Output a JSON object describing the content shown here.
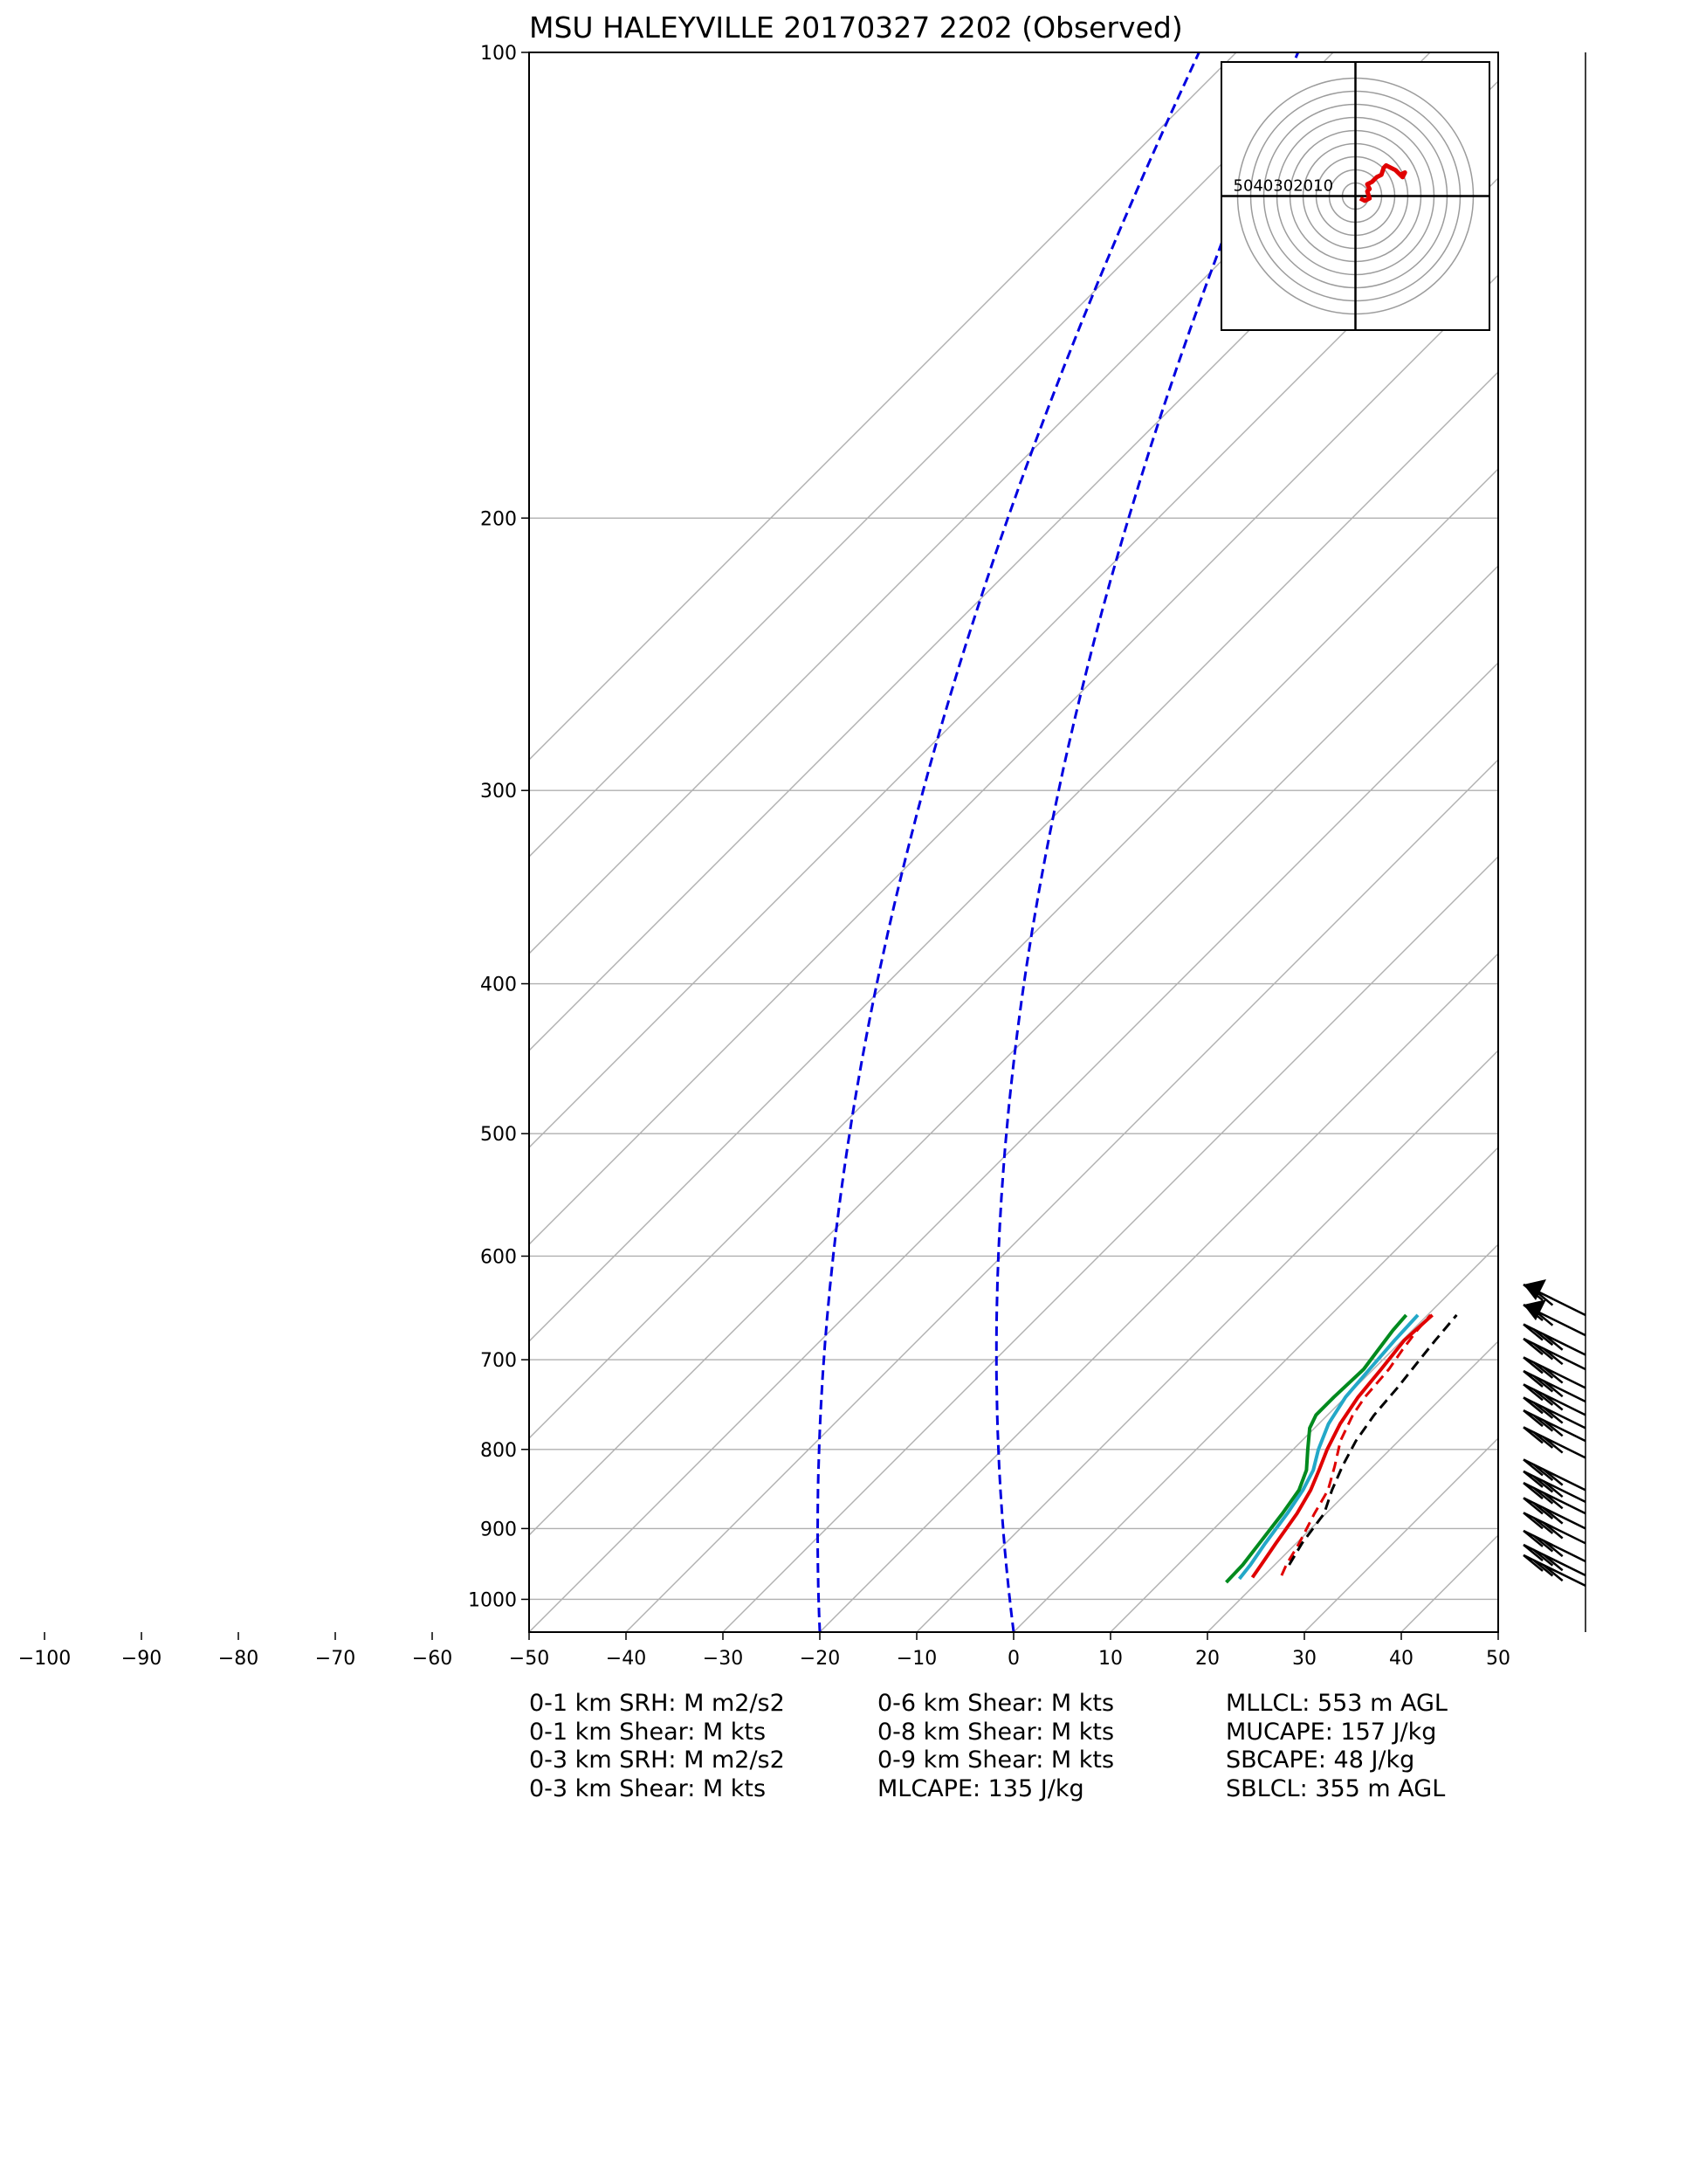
{
  "chart_data": {
    "type": "skew-t log-p",
    "title": "MSU HALEYVILLE 20170327 2202   (Observed)",
    "pressure_ticks": [
      100,
      200,
      300,
      400,
      500,
      600,
      700,
      800,
      900,
      1000
    ],
    "pressure_range": [
      1050,
      100
    ],
    "temperature_ticks": [
      -100,
      -90,
      -80,
      -70,
      -60,
      -50,
      -40,
      -30,
      -20,
      -10,
      0,
      10,
      20,
      30,
      40,
      50
    ],
    "temperature_range": [
      -50,
      50
    ],
    "grid": true,
    "dry_adiabat_reference_temps": [
      -20,
      0
    ],
    "series": [
      {
        "line": "solid",
        "color": "#e00000",
        "points": [
          [
            968,
            19.0
          ],
          [
            950,
            18.6
          ],
          [
            920,
            17.9
          ],
          [
            880,
            17.0
          ],
          [
            850,
            16.0
          ],
          [
            825,
            14.8
          ],
          [
            800,
            13.5
          ],
          [
            770,
            12.2
          ],
          [
            740,
            11.3
          ],
          [
            710,
            10.8
          ],
          [
            680,
            10.2
          ],
          [
            655,
            10.5
          ]
        ]
      },
      {
        "line": "solid",
        "color": "#23a8c8",
        "points": [
          [
            970,
            17.8
          ],
          [
            950,
            17.5
          ],
          [
            920,
            16.8
          ],
          [
            880,
            16.0
          ],
          [
            850,
            15.2
          ],
          [
            825,
            14.2
          ],
          [
            800,
            12.6
          ],
          [
            770,
            11.0
          ],
          [
            740,
            10.0
          ],
          [
            710,
            9.6
          ],
          [
            680,
            9.2
          ],
          [
            655,
            9.0
          ]
        ]
      },
      {
        "line": "solid",
        "color": "#008a1e",
        "points": [
          [
            975,
            16.8
          ],
          [
            950,
            16.7
          ],
          [
            920,
            16.2
          ],
          [
            880,
            15.5
          ],
          [
            850,
            14.8
          ],
          [
            825,
            13.5
          ],
          [
            800,
            11.5
          ],
          [
            775,
            9.5
          ],
          [
            760,
            8.8
          ],
          [
            740,
            8.8
          ],
          [
            710,
            9.0
          ],
          [
            690,
            8.5
          ],
          [
            670,
            8.0
          ],
          [
            655,
            7.8
          ]
        ]
      },
      {
        "line": "dashed",
        "color": "#e00000",
        "points": [
          [
            965,
            21.8
          ],
          [
            950,
            21.2
          ],
          [
            920,
            20.3
          ],
          [
            880,
            18.8
          ],
          [
            850,
            17.8
          ],
          [
            820,
            16.0
          ],
          [
            790,
            14.0
          ],
          [
            760,
            12.6
          ],
          [
            740,
            12.0
          ],
          [
            710,
            11.6
          ],
          [
            690,
            11.0
          ],
          [
            670,
            10.5
          ],
          [
            655,
            10.3
          ]
        ]
      },
      {
        "line": "dashed",
        "color": "#000000",
        "points": [
          [
            950,
            21.5
          ],
          [
            920,
            20.6
          ],
          [
            880,
            19.8
          ],
          [
            850,
            18.2
          ],
          [
            820,
            16.8
          ],
          [
            790,
            15.6
          ],
          [
            760,
            14.8
          ],
          [
            730,
            14.4
          ],
          [
            700,
            13.8
          ],
          [
            680,
            13.4
          ],
          [
            655,
            13.0
          ]
        ]
      }
    ],
    "wind_barb_pressures": [
      655,
      675,
      695,
      710,
      730,
      745,
      760,
      775,
      790,
      810,
      850,
      865,
      880,
      900,
      920,
      945,
      965,
      980
    ],
    "hodograph": {
      "ring_labels": [
        "50",
        "40",
        "30",
        "20",
        "10"
      ],
      "ring_speed_step": 10,
      "color": "#e00000",
      "trace_uv": [
        [
          2,
          -1
        ],
        [
          4,
          -2
        ],
        [
          6,
          -1
        ],
        [
          5,
          2
        ],
        [
          6,
          3
        ],
        [
          5,
          5
        ],
        [
          7,
          6
        ],
        [
          9,
          8
        ],
        [
          11,
          9
        ],
        [
          12,
          12
        ],
        [
          13,
          13
        ],
        [
          15,
          12
        ],
        [
          17,
          11
        ],
        [
          19,
          9
        ],
        [
          20,
          8
        ],
        [
          21,
          10
        ],
        [
          19,
          9
        ],
        [
          21,
          8
        ]
      ]
    }
  },
  "stats": {
    "col1": [
      "0-1 km SRH: M m2/s2",
      "0-1 km Shear: M kts",
      "0-3 km SRH: M m2/s2",
      "0-3 km Shear: M kts"
    ],
    "col2": [
      "0-6 km Shear: M kts",
      "0-8 km Shear: M kts",
      "0-9 km Shear: M kts",
      "MLCAPE: 135 J/kg"
    ],
    "col3": [
      "MLLCL: 553 m AGL",
      "MUCAPE: 157 J/kg",
      "SBCAPE: 48 J/kg",
      "SBLCL: 355 m AGL"
    ]
  }
}
